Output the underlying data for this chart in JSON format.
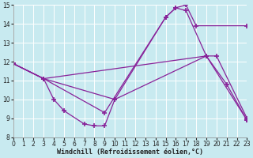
{
  "background_color": "#c8eaf0",
  "grid_color": "#ffffff",
  "line_color": "#882299",
  "marker": "+",
  "markersize": 4,
  "markeredgewidth": 1.2,
  "linewidth": 0.9,
  "xlim": [
    0,
    23
  ],
  "ylim": [
    8,
    15
  ],
  "xticks": [
    0,
    1,
    2,
    3,
    4,
    5,
    6,
    7,
    8,
    9,
    10,
    11,
    12,
    13,
    14,
    15,
    16,
    17,
    18,
    19,
    20,
    21,
    22,
    23
  ],
  "yticks": [
    8,
    9,
    10,
    11,
    12,
    13,
    14,
    15
  ],
  "xlabel": "Windchill (Refroidissement éolien,°C)",
  "xlabel_fontsize": 6.0,
  "tick_fontsize": 5.5,
  "lines": [
    {
      "x": [
        0,
        3,
        10,
        15,
        16,
        17,
        18,
        23
      ],
      "y": [
        11.9,
        11.1,
        10.0,
        14.35,
        14.85,
        15.0,
        13.9,
        13.9
      ]
    },
    {
      "x": [
        0,
        3,
        9,
        15,
        16,
        17,
        19,
        23
      ],
      "y": [
        11.9,
        11.1,
        9.3,
        14.35,
        14.85,
        14.7,
        12.3,
        8.9
      ]
    },
    {
      "x": [
        0,
        3,
        19,
        20,
        23
      ],
      "y": [
        11.9,
        11.1,
        12.3,
        12.3,
        9.0
      ]
    },
    {
      "x": [
        0,
        3,
        4,
        5,
        7,
        8,
        9,
        10,
        19,
        21,
        23
      ],
      "y": [
        11.9,
        11.1,
        10.0,
        9.4,
        8.7,
        8.6,
        8.6,
        10.0,
        12.3,
        10.8,
        8.9
      ]
    }
  ]
}
